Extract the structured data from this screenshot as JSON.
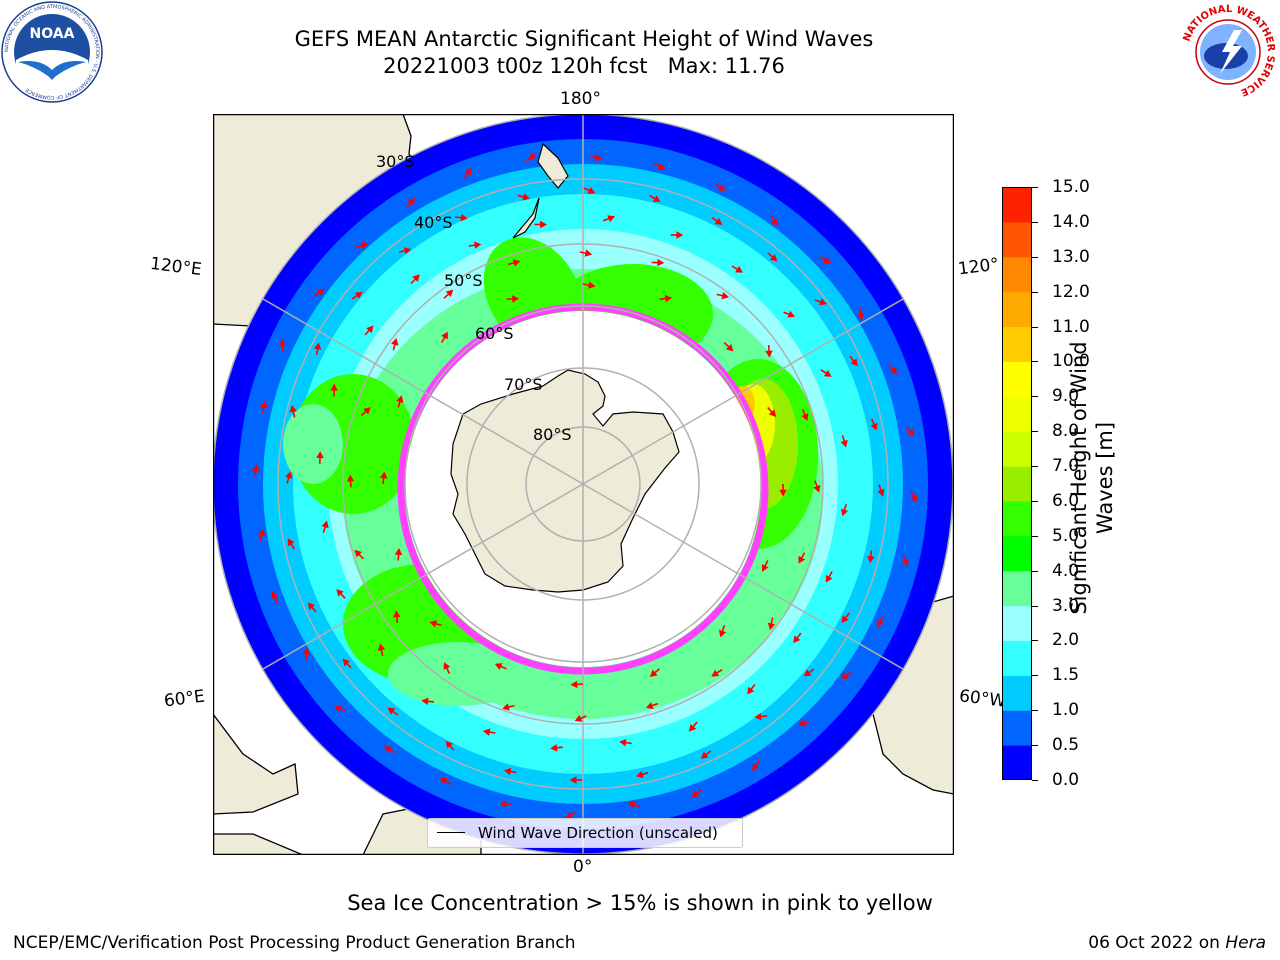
{
  "header": {
    "title_line1": "GEFS MEAN Antarctic Significant Height of Wind Waves",
    "title_line2": "20221003 t00z 120h fcst   Max: 11.76"
  },
  "logos": {
    "left": {
      "name": "noaa-logo",
      "text": "NOAA",
      "ring_text": "NATIONAL OCEANIC AND ATMOSPHERIC ADMINISTRATION · U.S. DEPARTMENT OF COMMERCE"
    },
    "right": {
      "name": "nws-logo",
      "ring_text": "NATIONAL WEATHER SERVICE"
    }
  },
  "map": {
    "projection": "south-polar-stereographic",
    "longitude_labels": {
      "top": "180°",
      "bottom": "0°",
      "left_upper": "120°E",
      "left_lower": "60°E",
      "right_upper": "120°",
      "right_lower": "60°W"
    },
    "latitude_labels": [
      "30°S",
      "40°S",
      "50°S",
      "60°S",
      "70°S",
      "80°S"
    ],
    "legend": {
      "label": "Wind Wave Direction (unscaled)"
    },
    "vector_color": "#ff0000",
    "land_color": "#efebd9",
    "sea_ice_color": "#ff40ff"
  },
  "colorbar": {
    "label": "Significant Height of Wind Waves [m]",
    "tick_labels": [
      "15.0",
      "14.0",
      "13.0",
      "12.0",
      "11.0",
      "10.0",
      "9.0",
      "8.0",
      "7.0",
      "6.0",
      "5.0",
      "4.0",
      "3.0",
      "2.0",
      "1.5",
      "1.0",
      "0.5",
      "0.0"
    ],
    "levels": [
      0.0,
      0.5,
      1.0,
      1.5,
      2.0,
      3.0,
      4.0,
      5.0,
      6.0,
      7.0,
      8.0,
      9.0,
      10.0,
      11.0,
      12.0,
      13.0,
      14.0,
      15.0
    ],
    "colors": [
      "#0000ff",
      "#0066ff",
      "#00ccff",
      "#33ffff",
      "#99ffff",
      "#66ff99",
      "#00ff00",
      "#33ff00",
      "#99ee00",
      "#ccff00",
      "#eeff00",
      "#ffff00",
      "#ffcc00",
      "#ffaa00",
      "#ff8800",
      "#ff5500",
      "#ff2200"
    ]
  },
  "caption": "Sea Ice Concentration > 15% is shown in pink to yellow",
  "footer": {
    "left": "NCEP/EMC/Verification Post Processing Product Generation Branch",
    "right_prefix": "06 Oct 2022 on ",
    "right_italic": "Hera"
  }
}
